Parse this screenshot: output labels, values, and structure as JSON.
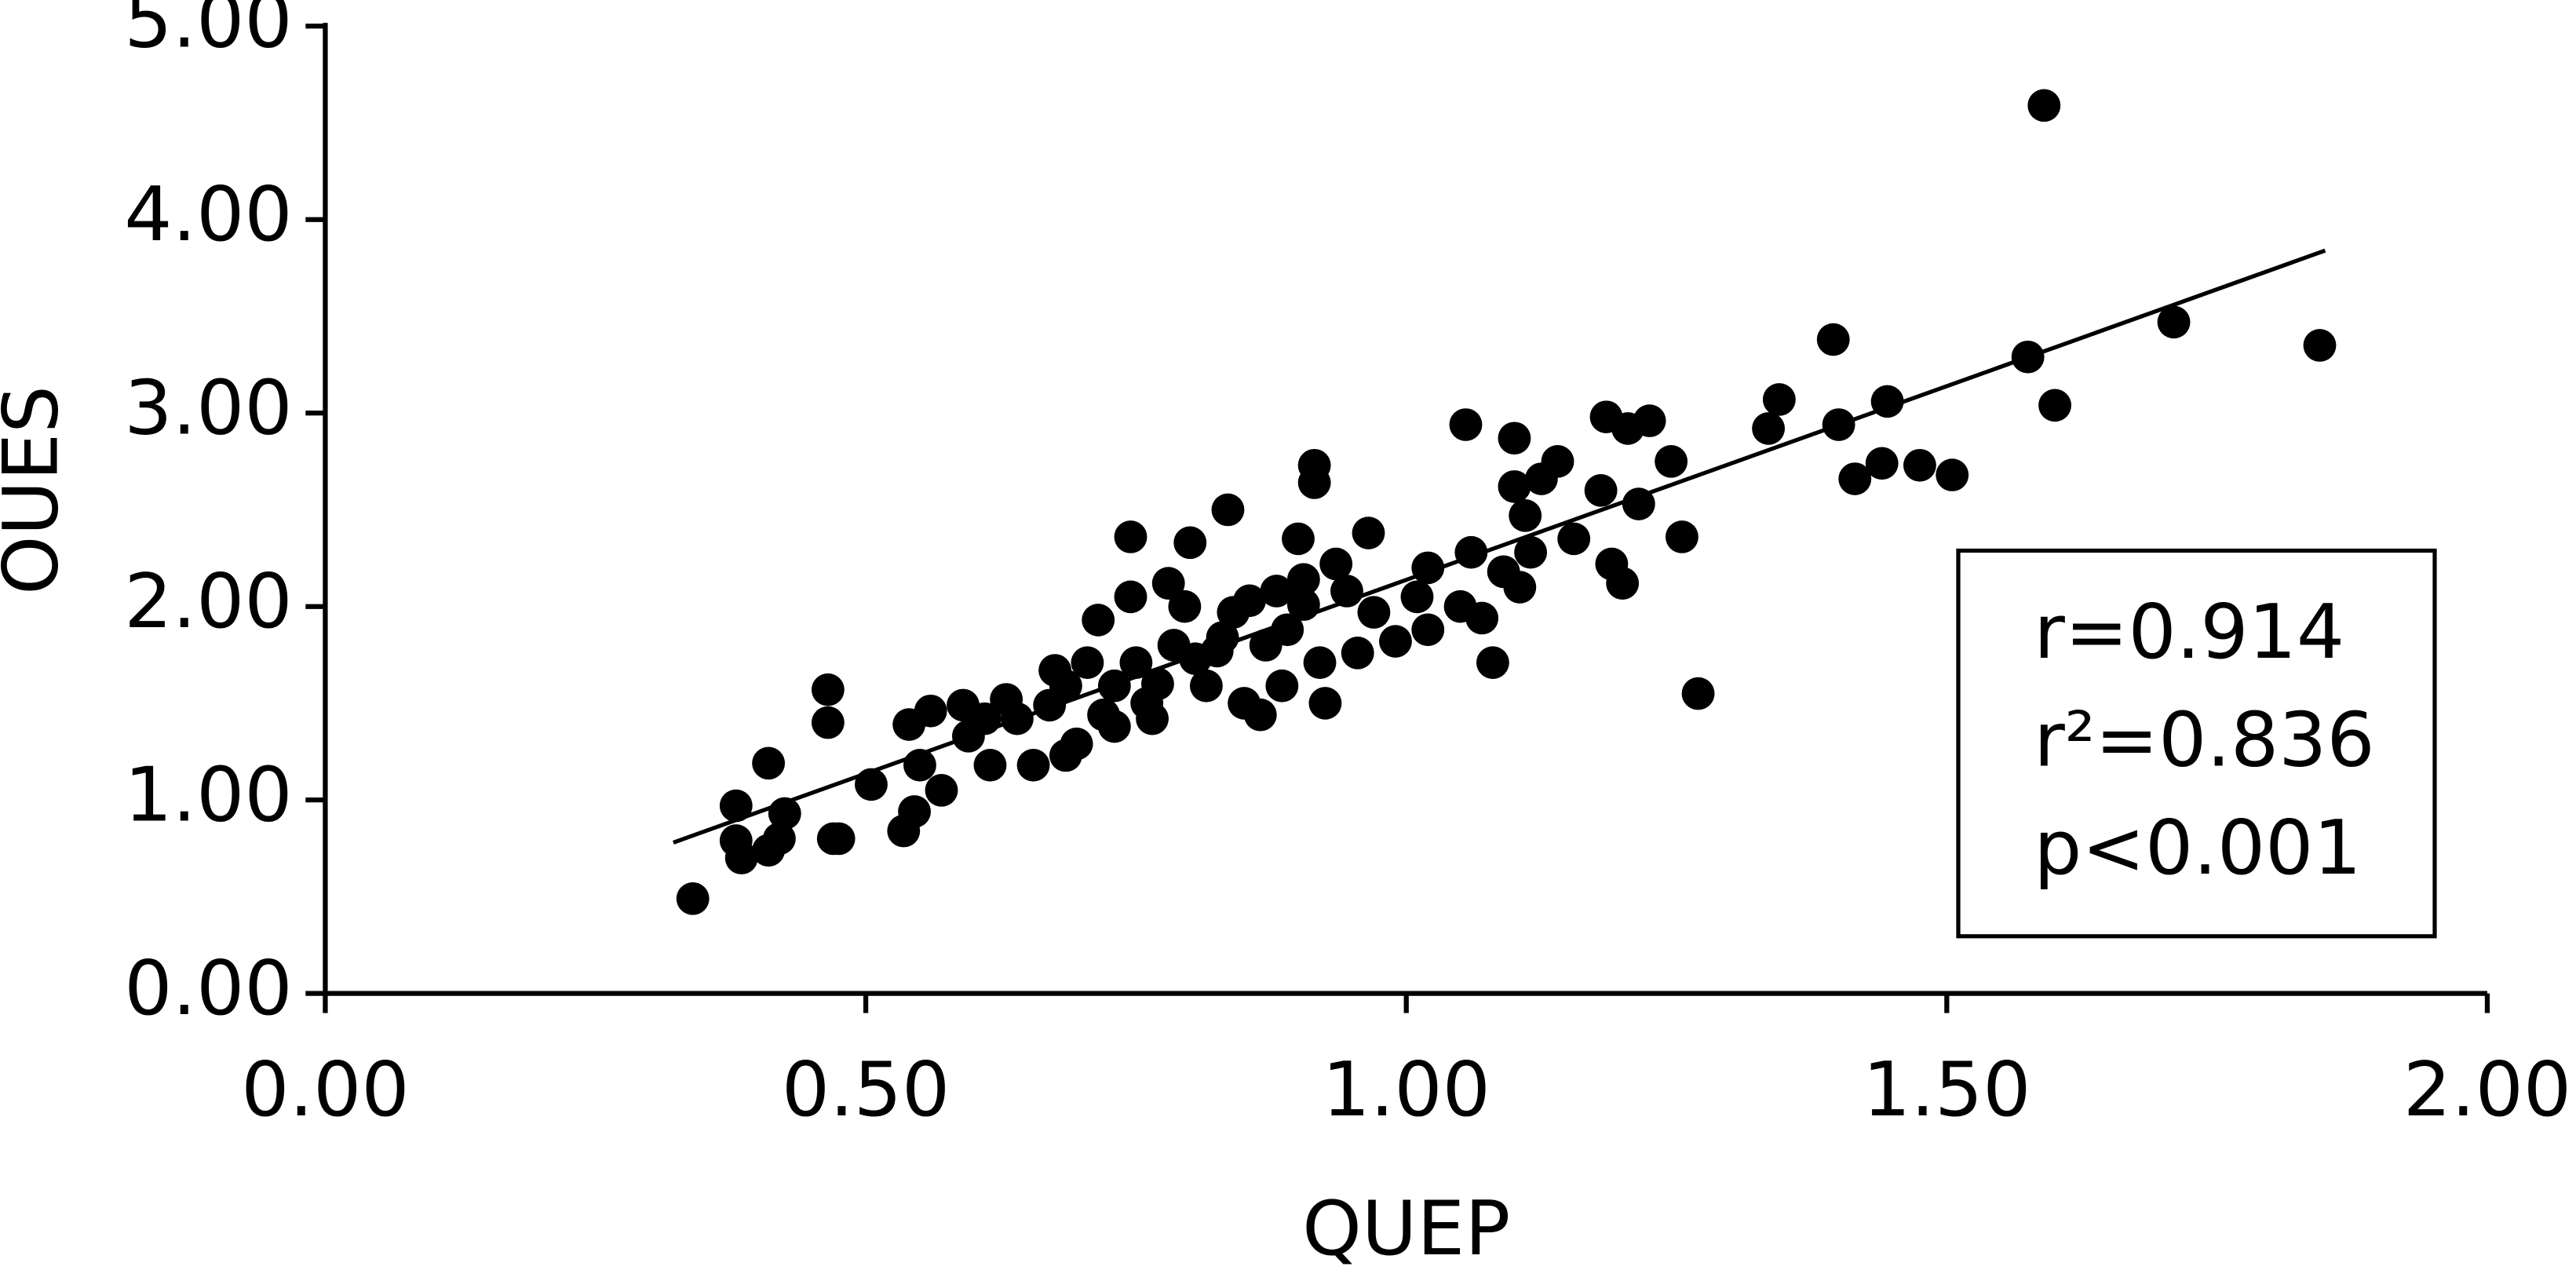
{
  "chart_data": {
    "type": "scatter",
    "x_label": "QUEP",
    "y_label": "OUES",
    "color": "#000000",
    "xlim": [
      0,
      2
    ],
    "ylim": [
      0,
      5
    ],
    "xticks": [
      {
        "value": 0,
        "label": "0.00"
      },
      {
        "value": 0.5,
        "label": "0.50"
      },
      {
        "value": 1,
        "label": "1.00"
      },
      {
        "value": 1.5,
        "label": "1.50"
      },
      {
        "value": 2,
        "label": "2.00"
      }
    ],
    "yticks": [
      {
        "value": 0,
        "label": "0.00"
      },
      {
        "value": 1,
        "label": "1.00"
      },
      {
        "value": 2,
        "label": "2.00"
      },
      {
        "value": 3,
        "label": "3.00"
      },
      {
        "value": 4,
        "label": "4.00"
      },
      {
        "value": 5,
        "label": "5.00"
      }
    ],
    "x": [
      0.34,
      0.38,
      0.38,
      0.385,
      0.41,
      0.41,
      0.425,
      0.42,
      0.465,
      0.465,
      0.47,
      0.475,
      0.505,
      0.535,
      0.545,
      0.54,
      0.56,
      0.57,
      0.55,
      0.59,
      0.595,
      0.61,
      0.615,
      0.63,
      0.64,
      0.655,
      0.67,
      0.685,
      0.685,
      0.695,
      0.705,
      0.715,
      0.72,
      0.73,
      0.73,
      0.745,
      0.745,
      0.75,
      0.76,
      0.77,
      0.78,
      0.785,
      0.795,
      0.8,
      0.805,
      0.815,
      0.825,
      0.835,
      0.84,
      0.85,
      0.855,
      0.865,
      0.87,
      0.88,
      0.885,
      0.89,
      0.9,
      0.905,
      0.915,
      0.915,
      0.92,
      0.925,
      0.935,
      0.945,
      0.955,
      0.965,
      0.97,
      0.99,
      1.01,
      1.02,
      1.02,
      1.05,
      1.055,
      1.06,
      1.07,
      1.08,
      1.09,
      1.1,
      1.1,
      1.105,
      1.11,
      1.115,
      1.125,
      1.14,
      1.155,
      1.18,
      1.185,
      1.19,
      1.2,
      1.205,
      1.215,
      1.225,
      1.245,
      1.255,
      1.27,
      1.335,
      1.345,
      1.395,
      1.4,
      1.415,
      1.44,
      1.445,
      1.475,
      1.505,
      1.575,
      1.59,
      1.6,
      1.71,
      1.845,
      0.675,
      0.765,
      0.83,
      0.905
    ],
    "values": [
      0.49,
      0.97,
      0.79,
      0.7,
      1.19,
      0.74,
      0.93,
      0.8,
      1.57,
      1.4,
      0.8,
      0.8,
      1.08,
      0.84,
      0.94,
      1.39,
      1.46,
      1.05,
      1.18,
      1.49,
      1.33,
      1.42,
      1.18,
      1.52,
      1.42,
      1.18,
      1.49,
      1.23,
      1.59,
      1.29,
      1.71,
      1.93,
      1.44,
      1.59,
      1.38,
      2.36,
      2.05,
      1.71,
      1.5,
      1.6,
      2.12,
      1.8,
      2.0,
      2.33,
      1.73,
      1.59,
      1.77,
      2.5,
      1.97,
      1.5,
      2.03,
      1.44,
      1.8,
      2.08,
      1.59,
      1.88,
      2.35,
      2.14,
      2.73,
      2.64,
      1.71,
      1.5,
      2.22,
      2.08,
      1.76,
      2.38,
      1.97,
      1.82,
      2.05,
      2.2,
      1.88,
      2.0,
      2.94,
      2.28,
      1.94,
      1.71,
      2.18,
      2.87,
      2.62,
      2.1,
      2.47,
      2.28,
      2.66,
      2.75,
      2.35,
      2.6,
      2.98,
      2.22,
      2.12,
      2.92,
      2.53,
      2.96,
      2.75,
      2.36,
      1.55,
      2.92,
      3.07,
      3.38,
      2.94,
      2.66,
      2.74,
      3.06,
      2.73,
      2.68,
      3.29,
      4.59,
      3.04,
      3.47,
      3.35,
      1.67,
      1.42,
      1.84,
      2.01
    ],
    "fit_line": {
      "x": [
        0.322,
        1.85
      ],
      "y": [
        0.78,
        3.84
      ]
    },
    "annotations": [
      "r=0.914",
      "r²=0.836",
      "p<0.001"
    ]
  }
}
